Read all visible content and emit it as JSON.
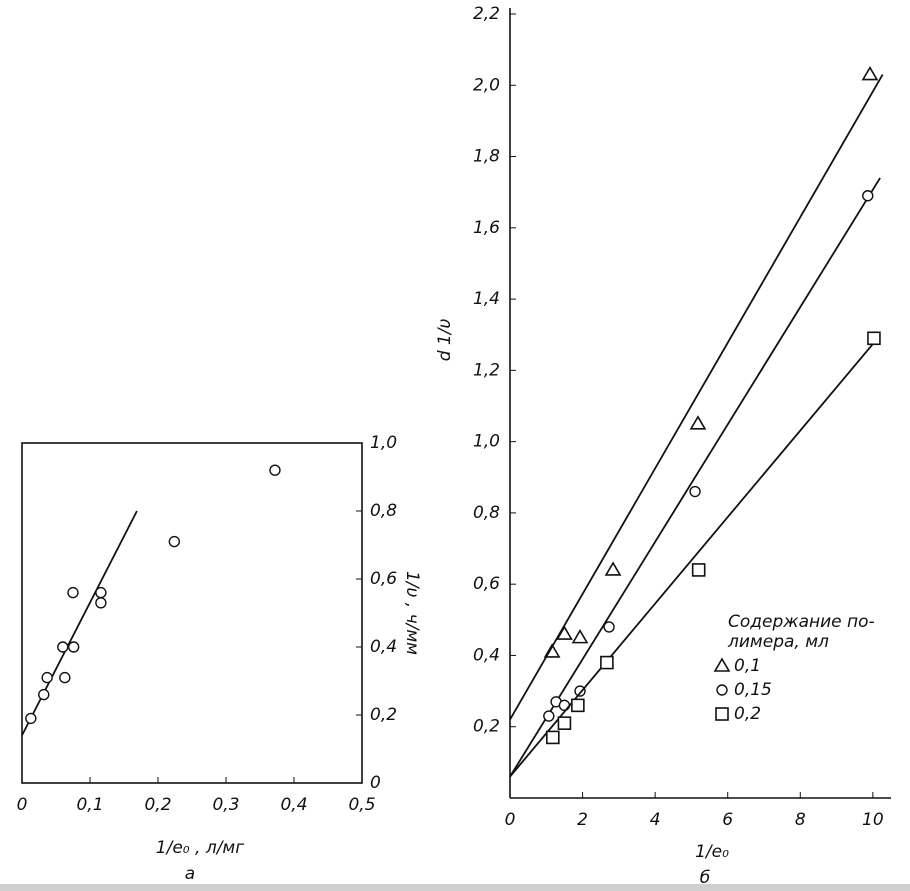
{
  "chart_data": [
    {
      "type": "scatter",
      "subtitle": "а",
      "x_label": "1/e₀ , л/мг",
      "y_label": "1/υ , ч/мм",
      "x": [
        0.013,
        0.032,
        0.037,
        0.06,
        0.076,
        0.063,
        0.075,
        0.116,
        0.116,
        0.224,
        0.372
      ],
      "values": [
        0.19,
        0.26,
        0.31,
        0.4,
        0.4,
        0.31,
        0.56,
        0.56,
        0.53,
        0.71,
        0.92
      ],
      "marker": "circle",
      "color": "#111111",
      "fit_line": {
        "x": [
          0,
          0.169
        ],
        "y": [
          0.14,
          0.8
        ]
      },
      "xlim": [
        0,
        0.5
      ],
      "ylim": [
        0,
        1.0
      ],
      "xticks": [
        0,
        {
          "value": 0.1,
          "label": "0,1"
        },
        {
          "value": 0.2,
          "label": "0,2"
        },
        {
          "value": 0.3,
          "label": "0,3"
        },
        {
          "value": 0.4,
          "label": "0,4"
        },
        {
          "value": 0.5,
          "label": "0,5"
        }
      ],
      "yticks": [
        0,
        {
          "value": 0.2,
          "label": "0,2"
        },
        {
          "value": 0.4,
          "label": "0,4"
        },
        {
          "value": 0.6,
          "label": "0,6"
        },
        {
          "value": 0.8,
          "label": "0,8"
        },
        {
          "value": 1.0,
          "label": "1,0"
        }
      ],
      "y_axis_side": "right",
      "frame": true
    },
    {
      "type": "scatter",
      "subtitle": "б",
      "x_label": "1/e₀",
      "y_label": "d 1/υ",
      "legend_title": [
        "Содержание по-",
        "лимера, мл"
      ],
      "legend": "lower right",
      "series": [
        {
          "name": "0,1",
          "marker": "triangle",
          "color": "#111111",
          "x": [
            1.16,
            1.5,
            1.93,
            2.84,
            5.18,
            9.92
          ],
          "values": [
            0.41,
            0.46,
            0.45,
            0.64,
            1.05,
            2.03
          ],
          "fit_line": {
            "x": [
              0,
              10.27
            ],
            "y": [
              0.22,
              2.03
            ]
          }
        },
        {
          "name": "0,15",
          "marker": "circle",
          "color": "#111111",
          "x": [
            1.07,
            1.27,
            1.5,
            1.93,
            2.73,
            5.1,
            9.86
          ],
          "values": [
            0.23,
            0.27,
            0.26,
            0.3,
            0.48,
            0.86,
            1.69
          ],
          "fit_line": {
            "x": [
              0,
              10.2
            ],
            "y": [
              0.06,
              1.74
            ]
          }
        },
        {
          "name": "0,2",
          "marker": "square",
          "color": "#111111",
          "x": [
            1.18,
            1.5,
            1.87,
            2.67,
            5.2,
            10.03
          ],
          "values": [
            0.17,
            0.21,
            0.26,
            0.38,
            0.64,
            1.29
          ],
          "fit_line": {
            "x": [
              0,
              10.05
            ],
            "y": [
              0.06,
              1.28
            ]
          }
        }
      ],
      "xlim": [
        0,
        10.5
      ],
      "ylim": [
        0,
        2.2
      ],
      "xticks": [
        0,
        2,
        4,
        6,
        8,
        10
      ],
      "yticks": [
        {
          "value": 0.2,
          "label": "0,2"
        },
        {
          "value": 0.4,
          "label": "0,4"
        },
        {
          "value": 0.6,
          "label": "0,6"
        },
        {
          "value": 0.8,
          "label": "0,8"
        },
        {
          "value": 1.0,
          "label": "1,0"
        },
        {
          "value": 1.2,
          "label": "1,2"
        },
        {
          "value": 1.4,
          "label": "1,4"
        },
        {
          "value": 1.6,
          "label": "1,6"
        },
        {
          "value": 1.8,
          "label": "1,8"
        },
        {
          "value": 2.0,
          "label": "2,0"
        },
        {
          "value": 2.2,
          "label": "2,2"
        }
      ],
      "y_axis_side": "left",
      "frame": false
    }
  ]
}
